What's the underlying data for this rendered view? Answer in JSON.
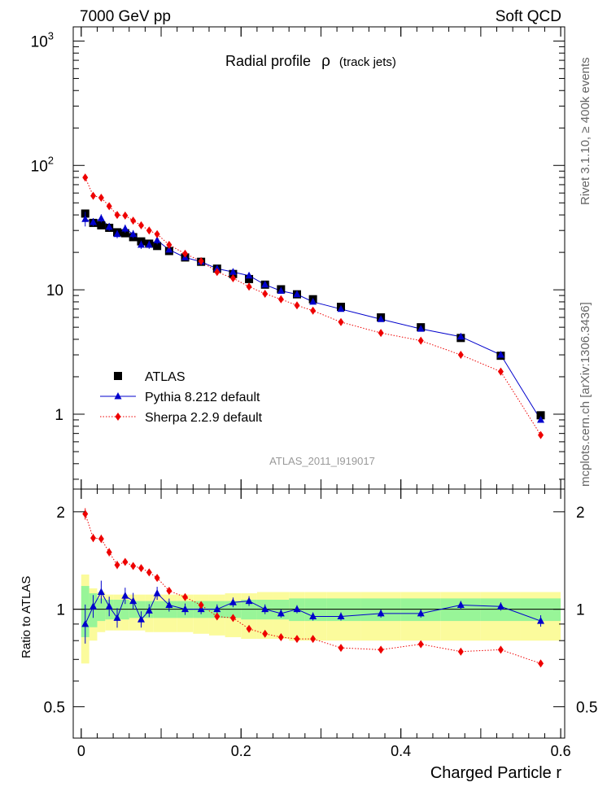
{
  "header": {
    "energy_label": "7000 GeV pp",
    "process_label": "Soft QCD",
    "side_label_top": "Rivet 3.1.10, ≥ 400k events",
    "side_label_bottom": "mcplots.cern.ch [arXiv:1306.3436]",
    "watermark": "ATLAS_2011_I919017"
  },
  "colors": {
    "data": "#000000",
    "pythia": "#0000cc",
    "sherpa": "#ee0000",
    "band_inner": "#98f598",
    "band_outer": "#fbfb9c"
  },
  "chart_data": [
    {
      "type": "line",
      "title": "Radial profile",
      "title_symbol": "ρ",
      "title_suffix": "(track jets)",
      "xlabel": "Charged Particle r",
      "ylabel": "",
      "yscale": "log",
      "xlim": [
        -0.01,
        0.605
      ],
      "ylim": [
        0.25,
        1300
      ],
      "y_tick_labels": [
        "10^3",
        "10^2",
        "10",
        "1"
      ],
      "x_tick_labels": [
        "0",
        "0.2",
        "0.4",
        "0.6"
      ],
      "legend_position": "lower-left",
      "x": [
        0.005,
        0.015,
        0.025,
        0.035,
        0.045,
        0.055,
        0.065,
        0.075,
        0.085,
        0.095,
        0.11,
        0.13,
        0.15,
        0.17,
        0.19,
        0.21,
        0.23,
        0.25,
        0.27,
        0.29,
        0.325,
        0.375,
        0.425,
        0.475,
        0.525,
        0.575
      ],
      "series": [
        {
          "name": "ATLAS",
          "style": "marker",
          "values": [
            41,
            34.5,
            33,
            31.5,
            29,
            28.5,
            26.5,
            24.5,
            23.5,
            22.5,
            20.5,
            18.2,
            16.8,
            14.8,
            13.4,
            12.2,
            11.0,
            10.1,
            9.2,
            8.4,
            7.3,
            6.0,
            5.0,
            4.1,
            2.95,
            0.98
          ]
        },
        {
          "name": "Pythia 8.212 default",
          "style": "line",
          "values": [
            37,
            35,
            37.5,
            32,
            28,
            31,
            28,
            23,
            23,
            25,
            21,
            18.2,
            16.8,
            14.8,
            13.9,
            13.0,
            11.0,
            9.8,
            9.2,
            8.0,
            7.0,
            5.8,
            4.85,
            4.2,
            3.0,
            0.9
          ]
        },
        {
          "name": "Sherpa 2.2.9 default",
          "style": "dotted",
          "values": [
            80,
            57,
            55,
            47,
            40,
            39.5,
            36,
            33,
            30,
            28,
            23,
            19.5,
            17,
            13.9,
            12.4,
            10.6,
            9.3,
            8.4,
            7.5,
            6.8,
            5.5,
            4.5,
            3.9,
            3.0,
            2.2,
            0.68
          ]
        }
      ]
    },
    {
      "type": "line",
      "title": "",
      "xlabel": "Charged Particle r",
      "ylabel": "Ratio to ATLAS",
      "xlim": [
        -0.01,
        0.605
      ],
      "ylim": [
        0.4,
        2.35
      ],
      "y_tick_labels": [
        "2",
        "1",
        "0.5"
      ],
      "x": [
        0.005,
        0.015,
        0.025,
        0.035,
        0.045,
        0.055,
        0.065,
        0.075,
        0.085,
        0.095,
        0.11,
        0.13,
        0.15,
        0.17,
        0.19,
        0.21,
        0.23,
        0.25,
        0.27,
        0.29,
        0.325,
        0.375,
        0.425,
        0.475,
        0.525,
        0.575
      ],
      "series": [
        {
          "name": "Pythia 8.212 default",
          "style": "line",
          "values": [
            0.9,
            1.02,
            1.13,
            1.02,
            0.94,
            1.1,
            1.06,
            0.93,
            0.99,
            1.12,
            1.03,
            1.0,
            1.0,
            1.0,
            1.05,
            1.06,
            1.0,
            0.97,
            1.0,
            0.95,
            0.95,
            0.97,
            0.97,
            1.03,
            1.02,
            0.92
          ]
        },
        {
          "name": "Sherpa 2.2.9 default",
          "style": "dotted",
          "values": [
            1.97,
            1.66,
            1.65,
            1.5,
            1.37,
            1.4,
            1.36,
            1.34,
            1.3,
            1.25,
            1.14,
            1.09,
            1.03,
            0.95,
            0.94,
            0.87,
            0.84,
            0.82,
            0.81,
            0.81,
            0.76,
            0.75,
            0.78,
            0.74,
            0.75,
            0.68
          ]
        },
        {
          "name": "inner band",
          "style": "band",
          "lower": [
            0.82,
            0.88,
            0.92,
            0.93,
            0.93,
            0.93,
            0.94,
            0.94,
            0.94,
            0.94,
            0.94,
            0.94,
            0.94,
            0.94,
            0.94,
            0.93,
            0.93,
            0.93,
            0.92,
            0.92,
            0.92,
            0.92,
            0.92,
            0.92,
            0.92,
            0.92
          ],
          "upper": [
            1.18,
            1.12,
            1.08,
            1.07,
            1.07,
            1.07,
            1.06,
            1.06,
            1.06,
            1.06,
            1.06,
            1.06,
            1.06,
            1.06,
            1.06,
            1.07,
            1.07,
            1.07,
            1.08,
            1.08,
            1.08,
            1.08,
            1.08,
            1.08,
            1.08,
            1.08
          ]
        },
        {
          "name": "outer band",
          "style": "band",
          "lower": [
            0.68,
            0.8,
            0.85,
            0.86,
            0.86,
            0.86,
            0.86,
            0.86,
            0.85,
            0.85,
            0.85,
            0.85,
            0.84,
            0.83,
            0.82,
            0.81,
            0.81,
            0.81,
            0.8,
            0.8,
            0.8,
            0.8,
            0.8,
            0.8,
            0.8,
            0.8
          ],
          "upper": [
            1.28,
            1.16,
            1.13,
            1.11,
            1.11,
            1.11,
            1.11,
            1.11,
            1.11,
            1.11,
            1.11,
            1.11,
            1.11,
            1.11,
            1.12,
            1.12,
            1.13,
            1.13,
            1.13,
            1.13,
            1.13,
            1.13,
            1.13,
            1.13,
            1.13,
            1.13
          ]
        }
      ]
    }
  ]
}
